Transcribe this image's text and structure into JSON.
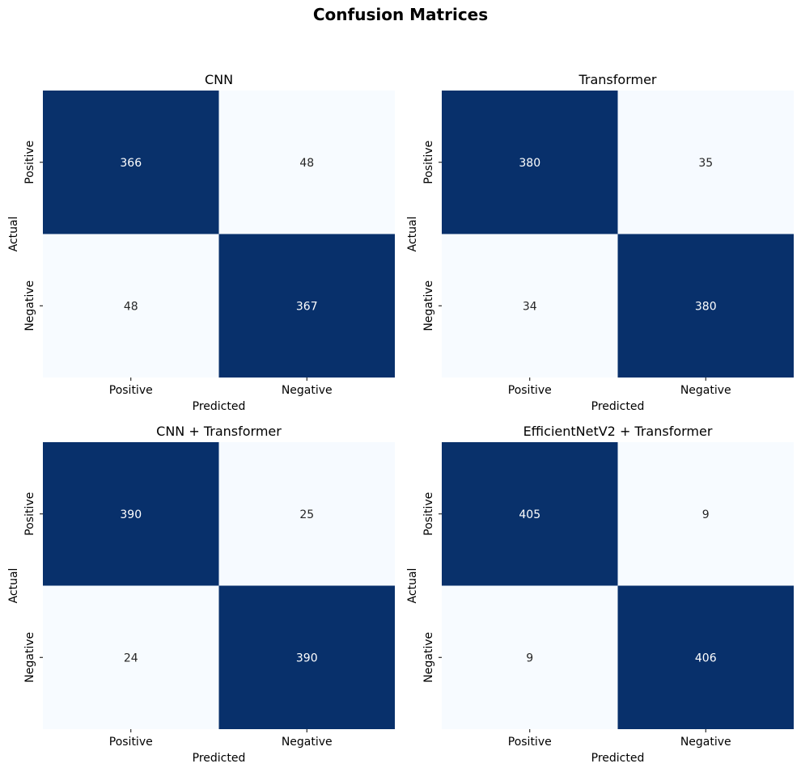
{
  "figure": {
    "title": "Confusion Matrices"
  },
  "colors": {
    "high": "#08306b",
    "low": "#f7fbff",
    "text_on_dark": "#ffffff",
    "text_on_light": "#262626"
  },
  "chart_data": [
    {
      "type": "heatmap",
      "title": "CNN",
      "xlabel": "Predicted",
      "ylabel": "Actual",
      "x_categories": [
        "Positive",
        "Negative"
      ],
      "y_categories": [
        "Positive",
        "Negative"
      ],
      "values": [
        [
          366,
          48
        ],
        [
          48,
          367
        ]
      ],
      "colorbar": false
    },
    {
      "type": "heatmap",
      "title": "Transformer",
      "xlabel": "Predicted",
      "ylabel": "Actual",
      "x_categories": [
        "Positive",
        "Negative"
      ],
      "y_categories": [
        "Positive",
        "Negative"
      ],
      "values": [
        [
          380,
          35
        ],
        [
          34,
          380
        ]
      ],
      "colorbar": false
    },
    {
      "type": "heatmap",
      "title": "CNN + Transformer",
      "xlabel": "Predicted",
      "ylabel": "Actual",
      "x_categories": [
        "Positive",
        "Negative"
      ],
      "y_categories": [
        "Positive",
        "Negative"
      ],
      "values": [
        [
          390,
          25
        ],
        [
          24,
          390
        ]
      ],
      "colorbar": false
    },
    {
      "type": "heatmap",
      "title": "EfficientNetV2 + Transformer",
      "xlabel": "Predicted",
      "ylabel": "Actual",
      "x_categories": [
        "Positive",
        "Negative"
      ],
      "y_categories": [
        "Positive",
        "Negative"
      ],
      "values": [
        [
          405,
          9
        ],
        [
          9,
          406
        ]
      ],
      "colorbar": false
    }
  ]
}
